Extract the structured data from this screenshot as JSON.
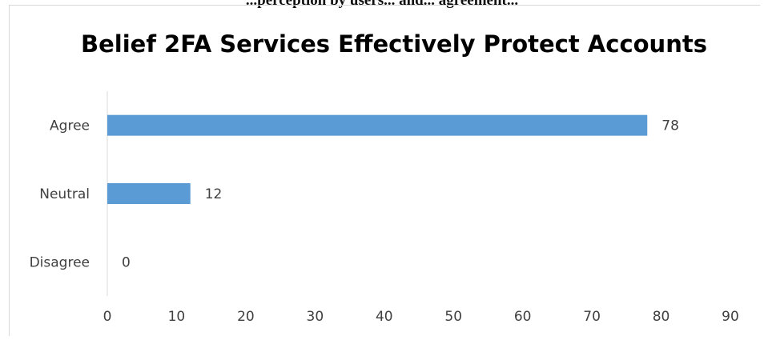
{
  "header": {
    "clipped_caption": "...perception by users... and... agreement..."
  },
  "chart_data": {
    "type": "bar",
    "orientation": "horizontal",
    "title": "Belief 2FA Services Effectively Protect Accounts",
    "categories": [
      "Agree",
      "Neutral",
      "Disagree"
    ],
    "values": [
      78,
      12,
      0
    ],
    "xlim": [
      0,
      90
    ],
    "xticks": [
      0,
      10,
      20,
      30,
      40,
      50,
      60,
      70,
      80,
      90
    ],
    "grid": false,
    "legend": "none",
    "data_labels": true,
    "bar_color": "#5b9bd5",
    "axis_color": "#d9d9d9",
    "text_color": "#404040"
  }
}
